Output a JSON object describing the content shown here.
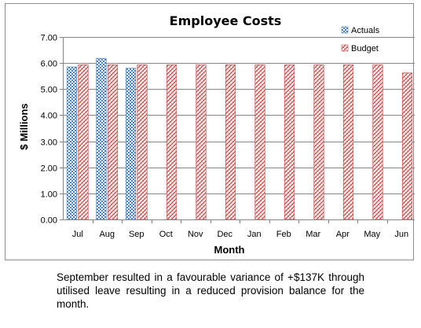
{
  "chart_data": {
    "type": "bar",
    "title": "Employee Costs",
    "xlabel": "Month",
    "ylabel": "$ Millions",
    "categories": [
      "Jul",
      "Aug",
      "Sep",
      "Oct",
      "Nov",
      "Dec",
      "Jan",
      "Feb",
      "Mar",
      "Apr",
      "May",
      "Jun"
    ],
    "ylim": [
      0,
      7
    ],
    "yticks": [
      "0.00",
      "1.00",
      "2.00",
      "3.00",
      "4.00",
      "5.00",
      "6.00",
      "7.00"
    ],
    "grid": true,
    "legend_position": "top-right",
    "series": [
      {
        "name": "Actuals",
        "color": "#4f81bd",
        "values": [
          5.85,
          6.18,
          5.8,
          null,
          null,
          null,
          null,
          null,
          null,
          null,
          null,
          null
        ]
      },
      {
        "name": "Budget",
        "color": "#c0504d",
        "values": [
          5.93,
          5.93,
          5.93,
          5.93,
          5.93,
          5.93,
          5.93,
          5.93,
          5.93,
          5.93,
          5.93,
          5.62
        ]
      }
    ]
  },
  "caption": "September resulted in a favourable variance of +$137K through utilised leave resulting in a reduced provision balance for the month."
}
